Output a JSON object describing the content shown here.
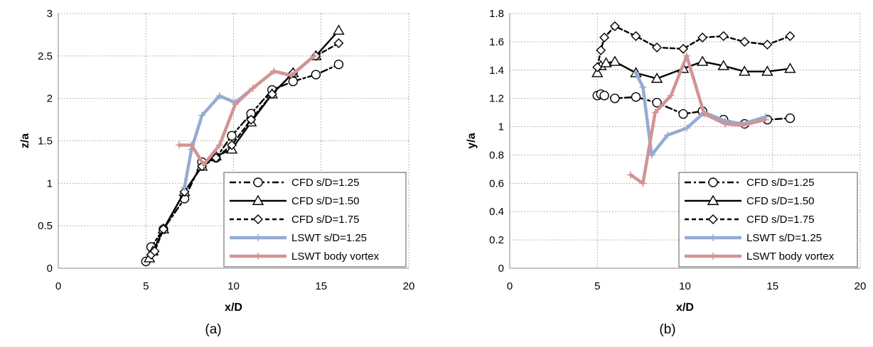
{
  "chart_data": [
    {
      "type": "line",
      "panel_label": "(a)",
      "xlabel": "x/D",
      "ylabel": "z/a",
      "xlim": [
        0,
        20
      ],
      "ylim": [
        0,
        3
      ],
      "x_ticks": [
        "0",
        "5",
        "10",
        "15",
        "20"
      ],
      "y_ticks": [
        "0",
        "0.5",
        "1",
        "1.5",
        "2",
        "2.5",
        "3"
      ],
      "grid": "dotted",
      "legend_position": "bottom-right",
      "series": [
        {
          "name": "CFD s/D=1.25",
          "color": "#000000",
          "marker": "circle",
          "line": "dash-dot",
          "x": [
            5.0,
            5.3,
            6.0,
            7.2,
            8.2,
            9.0,
            9.9,
            11.0,
            12.2,
            13.4,
            14.7,
            16.0
          ],
          "y": [
            0.08,
            0.25,
            0.46,
            0.82,
            1.25,
            1.3,
            1.56,
            1.82,
            2.1,
            2.2,
            2.28,
            2.4
          ]
        },
        {
          "name": "CFD s/D=1.50",
          "color": "#000000",
          "marker": "triangle",
          "line": "long-dash",
          "x": [
            5.2,
            5.4,
            6.0,
            7.2,
            8.2,
            9.0,
            9.9,
            11.0,
            12.2,
            13.4,
            14.7,
            16.0
          ],
          "y": [
            0.12,
            0.2,
            0.46,
            0.9,
            1.2,
            1.32,
            1.4,
            1.72,
            2.05,
            2.3,
            2.5,
            2.8
          ]
        },
        {
          "name": "CFD s/D=1.75",
          "color": "#000000",
          "marker": "diamond",
          "line": "short-dash",
          "x": [
            5.3,
            5.5,
            6.0,
            7.2,
            8.2,
            9.0,
            9.9,
            11.0,
            12.2,
            13.4,
            14.7,
            16.0
          ],
          "y": [
            0.16,
            0.2,
            0.46,
            0.9,
            1.2,
            1.3,
            1.45,
            1.75,
            2.05,
            2.3,
            2.5,
            2.65
          ]
        },
        {
          "name": "LSWT s/D=1.25",
          "color": "#95ABD3",
          "marker": "plus",
          "line": "solid",
          "x": [
            7.2,
            7.6,
            8.2,
            9.2,
            10.1,
            11.1,
            12.3,
            13.3,
            14.6
          ],
          "y": [
            0.95,
            1.4,
            1.8,
            2.03,
            1.95,
            2.12,
            2.32,
            2.27,
            2.5
          ]
        },
        {
          "name": "LSWT body vortex",
          "color": "#D49393",
          "marker": "plus",
          "line": "solid",
          "x": [
            6.9,
            7.6,
            8.3,
            9.2,
            10.1,
            11.1,
            12.3,
            13.3,
            14.6
          ],
          "y": [
            1.45,
            1.45,
            1.22,
            1.45,
            1.93,
            2.12,
            2.32,
            2.27,
            2.5
          ]
        }
      ]
    },
    {
      "type": "line",
      "panel_label": "(b)",
      "xlabel": "x/D",
      "ylabel": "y/a",
      "xlim": [
        0,
        20
      ],
      "ylim": [
        0,
        1.8
      ],
      "x_ticks": [
        "0",
        "5",
        "10",
        "15",
        "20"
      ],
      "y_ticks": [
        "0",
        "0.2",
        "0.4",
        "0.6",
        "0.8",
        "1",
        "1.2",
        "1.4",
        "1.6",
        "1.8"
      ],
      "grid": "dotted",
      "legend_position": "bottom-right",
      "series": [
        {
          "name": "CFD s/D=1.25",
          "color": "#000000",
          "marker": "circle",
          "line": "dash-dot",
          "x": [
            5.0,
            5.2,
            5.4,
            6.0,
            7.2,
            8.4,
            9.9,
            11.0,
            12.2,
            13.4,
            14.7,
            16.0
          ],
          "y": [
            1.22,
            1.23,
            1.22,
            1.2,
            1.21,
            1.17,
            1.09,
            1.11,
            1.05,
            1.02,
            1.05,
            1.06
          ]
        },
        {
          "name": "CFD s/D=1.50",
          "color": "#000000",
          "marker": "triangle",
          "line": "long-dash",
          "x": [
            5.0,
            5.2,
            5.5,
            6.0,
            7.2,
            8.4,
            9.9,
            11.0,
            12.2,
            13.4,
            14.7,
            16.0
          ],
          "y": [
            1.38,
            1.43,
            1.45,
            1.46,
            1.38,
            1.34,
            1.41,
            1.46,
            1.43,
            1.39,
            1.39,
            1.41
          ]
        },
        {
          "name": "CFD s/D=1.75",
          "color": "#000000",
          "marker": "diamond",
          "line": "short-dash",
          "x": [
            5.0,
            5.2,
            5.4,
            6.0,
            7.2,
            8.4,
            9.9,
            11.0,
            12.2,
            13.4,
            14.7,
            16.0
          ],
          "y": [
            1.42,
            1.54,
            1.63,
            1.71,
            1.64,
            1.56,
            1.55,
            1.63,
            1.64,
            1.6,
            1.58,
            1.64
          ]
        },
        {
          "name": "LSWT s/D=1.25",
          "color": "#95ABD3",
          "marker": "plus",
          "line": "solid",
          "x": [
            7.2,
            7.6,
            8.1,
            9.0,
            10.1,
            11.1,
            12.3,
            13.3,
            14.6
          ],
          "y": [
            1.38,
            1.28,
            0.8,
            0.94,
            0.99,
            1.1,
            1.04,
            1.02,
            1.07
          ]
        },
        {
          "name": "LSWT body vortex",
          "color": "#D49393",
          "marker": "plus",
          "line": "solid",
          "x": [
            6.9,
            7.6,
            8.3,
            9.2,
            10.1,
            11.1,
            12.3,
            13.3,
            14.6
          ],
          "y": [
            0.66,
            0.6,
            1.1,
            1.22,
            1.5,
            1.09,
            1.02,
            1.01,
            1.05
          ]
        }
      ]
    }
  ]
}
